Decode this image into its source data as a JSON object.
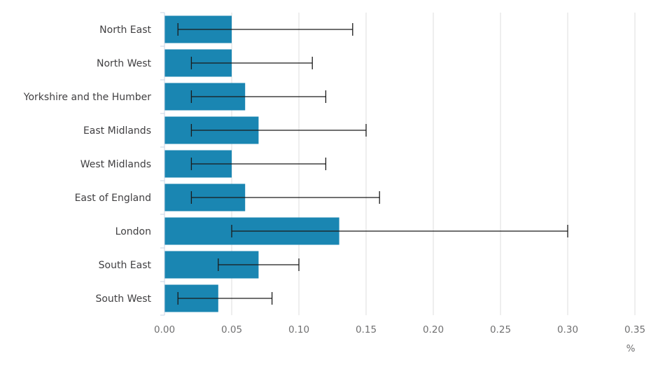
{
  "chart_data": {
    "type": "bar",
    "orientation": "horizontal",
    "categories": [
      "North East",
      "North West",
      "Yorkshire and the Humber",
      "East Midlands",
      "West Midlands",
      "East of England",
      "London",
      "South East",
      "South West"
    ],
    "values": [
      0.05,
      0.05,
      0.06,
      0.07,
      0.05,
      0.06,
      0.13,
      0.07,
      0.04
    ],
    "error_low": [
      0.01,
      0.02,
      0.02,
      0.02,
      0.02,
      0.02,
      0.05,
      0.04,
      0.01
    ],
    "error_high": [
      0.14,
      0.11,
      0.12,
      0.15,
      0.12,
      0.16,
      0.3,
      0.1,
      0.08
    ],
    "xlim": [
      0,
      0.35
    ],
    "xticks": [
      "0.00",
      "0.05",
      "0.10",
      "0.15",
      "0.20",
      "0.25",
      "0.30",
      "0.35"
    ],
    "xlabel": "%",
    "bar_color": "#1a86b2",
    "grid": true
  }
}
